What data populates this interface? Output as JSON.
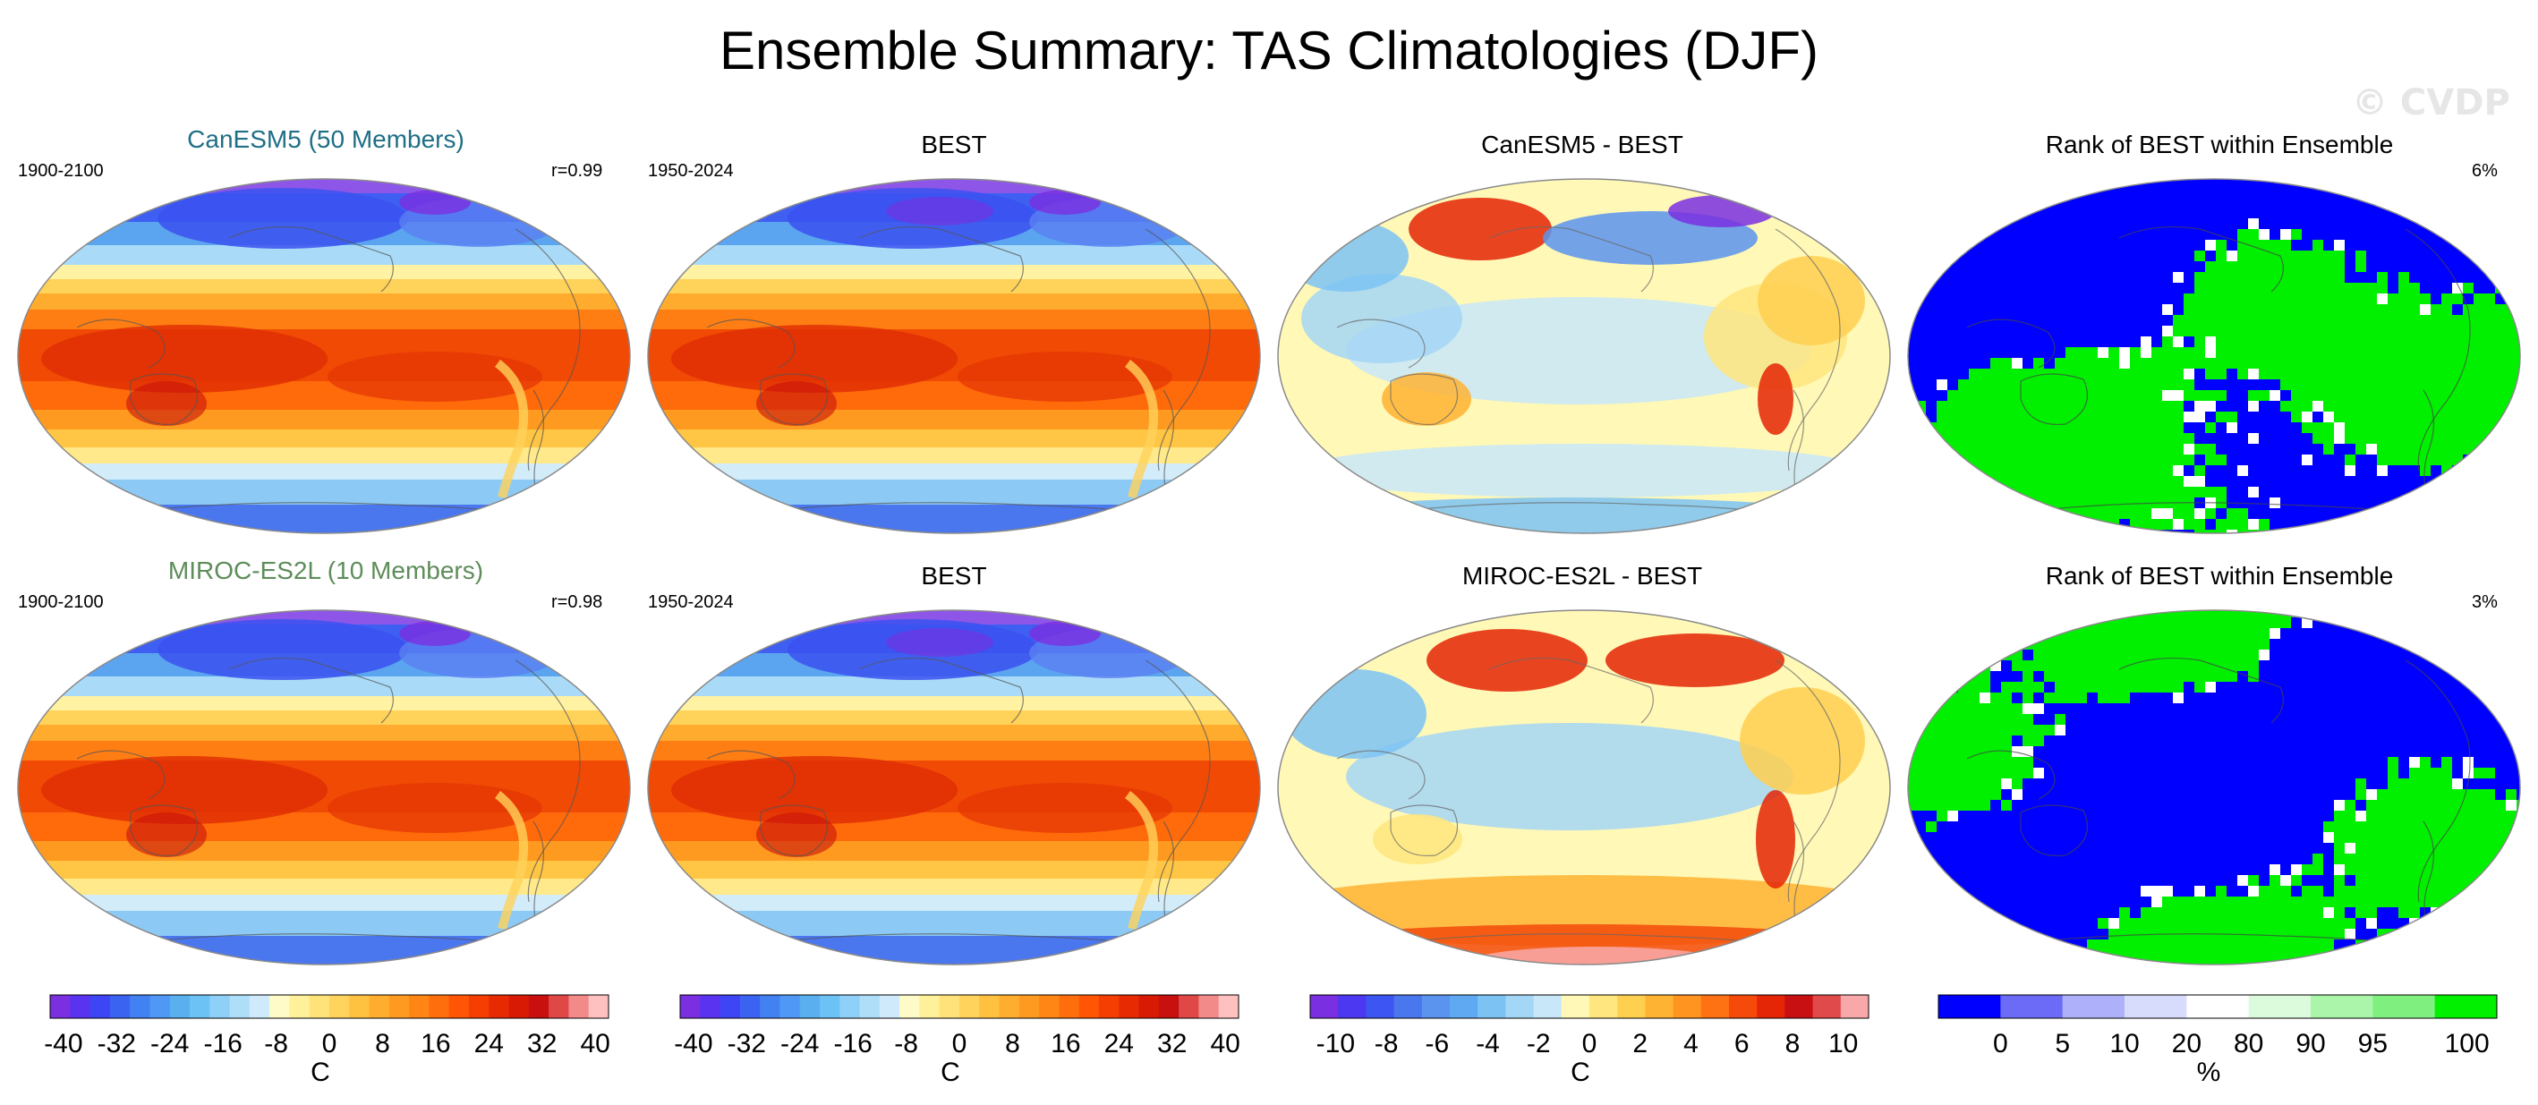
{
  "title": "Ensemble Summary: TAS Climatologies (DJF)",
  "watermark": "© CVDP",
  "rows": [
    {
      "model_title": "CanESM5 (50 Members)",
      "model_title_color": "#1f6f86",
      "model_period": "1900-2100",
      "pattern_corr": "r=0.99",
      "obs_title": "BEST",
      "obs_period": "1950-2024",
      "diff_title": "CanESM5 - BEST",
      "rank_title": "Rank of BEST within Ensemble",
      "rank_pct": "6%"
    },
    {
      "model_title": "MIROC-ES2L (10 Members)",
      "model_title_color": "#5e8c5a",
      "model_period": "1900-2100",
      "pattern_corr": "r=0.98",
      "obs_title": "BEST",
      "obs_period": "1950-2024",
      "diff_title": "MIROC-ES2L - BEST",
      "rank_title": "Rank of BEST within Ensemble",
      "rank_pct": "3%"
    }
  ],
  "chart_data": [
    {
      "type": "heatmap",
      "name": "climatology colorbar",
      "variable": "TAS",
      "season": "DJF",
      "tick_labels": [
        "-40",
        "-32",
        "-24",
        "-16",
        "-8",
        "0",
        "8",
        "16",
        "24",
        "32",
        "40"
      ],
      "unit_label": "C",
      "range": [
        -42,
        42
      ],
      "colors": [
        "#7a2fe0",
        "#5a33f0",
        "#3d45f5",
        "#3b63f2",
        "#4181f2",
        "#4f98f5",
        "#5aafef",
        "#6cc1f5",
        "#8ed0f7",
        "#afdef9",
        "#cfebfb",
        "#fffbc8",
        "#fff199",
        "#ffe37a",
        "#ffd35c",
        "#ffc140",
        "#ffad2e",
        "#ff9a20",
        "#ff8514",
        "#ff6e0c",
        "#ff5505",
        "#f53e02",
        "#e82a02",
        "#d81a05",
        "#c8100e",
        "#e04848",
        "#f28a8a",
        "#ffc0c0"
      ]
    },
    {
      "type": "heatmap",
      "name": "difference colorbar",
      "tick_labels": [
        "-10",
        "-8",
        "-6",
        "-4",
        "-2",
        "0",
        "2",
        "4",
        "6",
        "8",
        "10"
      ],
      "unit_label": "C",
      "range": [
        -11,
        11
      ],
      "colors": [
        "#7a2fe0",
        "#4b38f0",
        "#3d55f2",
        "#4a76ee",
        "#5a94ef",
        "#5fa9f2",
        "#7cc3f4",
        "#a4d6f6",
        "#c8e7f9",
        "#fff8b6",
        "#ffe67e",
        "#ffcf50",
        "#ffb332",
        "#ff9420",
        "#ff7214",
        "#f54a0a",
        "#e42506",
        "#c81012",
        "#e04a4a",
        "#f8a8a8"
      ]
    },
    {
      "type": "heatmap",
      "name": "rank colorbar",
      "tick_labels": [
        "0",
        "5",
        "10",
        "20",
        "80",
        "90",
        "95",
        "100"
      ],
      "unit_label": "%",
      "colors": [
        "#0000ff",
        "#6b6bf7",
        "#aeb1fa",
        "#d8dcfc",
        "#ffffff",
        "#dcfadc",
        "#aaf5aa",
        "#7ff07f",
        "#00f000"
      ]
    }
  ]
}
